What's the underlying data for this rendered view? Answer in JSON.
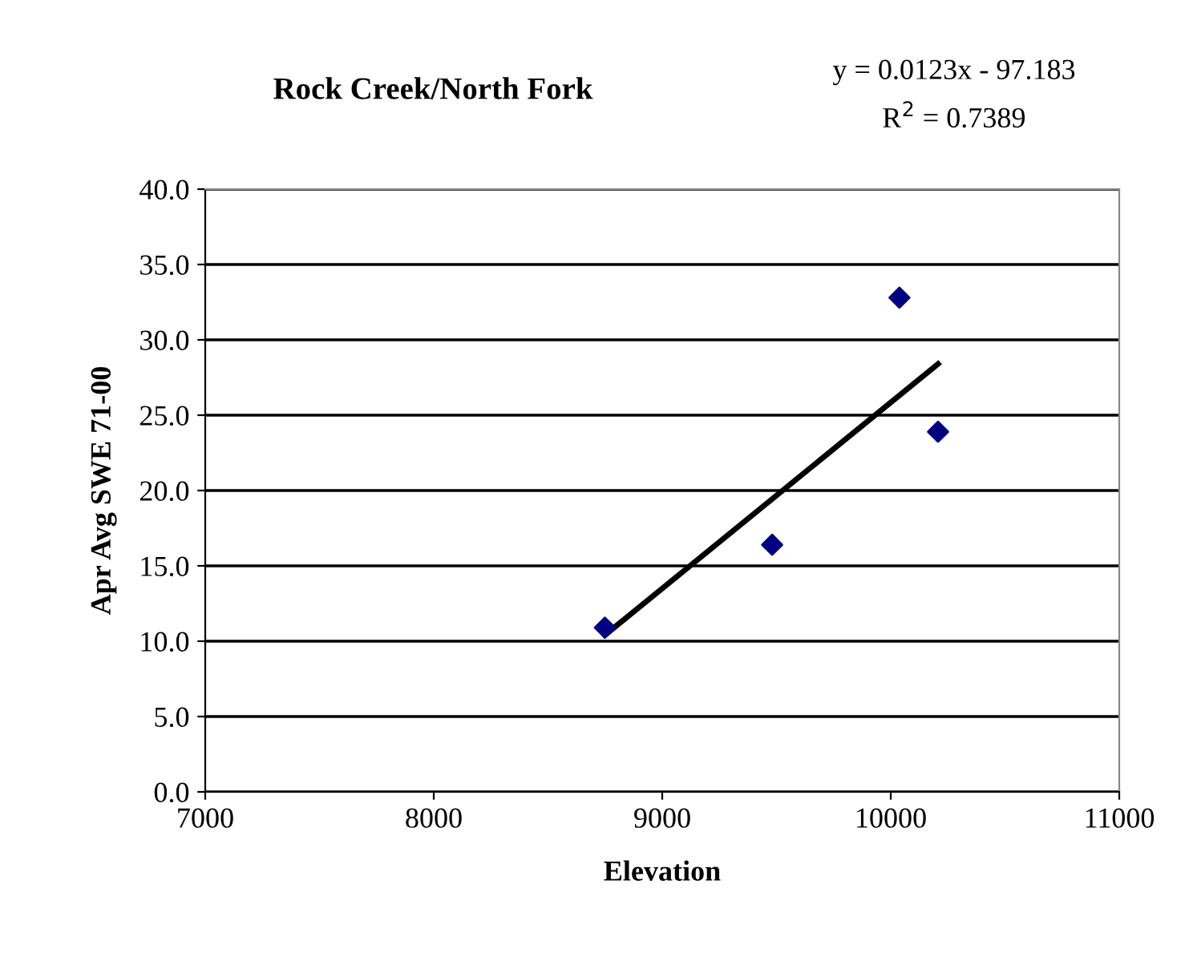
{
  "chart_data": {
    "type": "scatter",
    "title": "Rock Creek/North Fork",
    "xlabel": "Elevation",
    "ylabel": "Apr Avg SWE 71-00",
    "annotations": [
      "y = 0.0123x - 97.183",
      "R$^{2}$ = 0.7389"
    ],
    "series": [
      {
        "color": "#000080",
        "marker": "diamond",
        "x": [
          8749,
          9481,
          10038,
          10207
        ],
        "values": [
          10.9,
          16.4,
          32.8,
          23.9
        ]
      },
      {
        "type": "line",
        "color": "#000000",
        "marker": "none",
        "line_style": "solid",
        "x": [
          8749,
          10207
        ],
        "values": [
          10.4,
          28.4
        ]
      }
    ],
    "xlim": [
      7000,
      11000
    ],
    "xticks": [
      7000,
      8000,
      9000,
      10000,
      11000
    ],
    "ylim": [
      0,
      40
    ],
    "yticks": [
      {
        "value": 0,
        "label": "0.0"
      },
      {
        "value": 5,
        "label": "5.0"
      },
      {
        "value": 10,
        "label": "10.0"
      },
      {
        "value": 15,
        "label": "15.0"
      },
      {
        "value": 20,
        "label": "20.0"
      },
      {
        "value": 25,
        "label": "25.0"
      },
      {
        "value": 30,
        "label": "30.0"
      },
      {
        "value": 35,
        "label": "35.0"
      },
      {
        "value": 40,
        "label": "40.0"
      }
    ],
    "grid": "y"
  }
}
